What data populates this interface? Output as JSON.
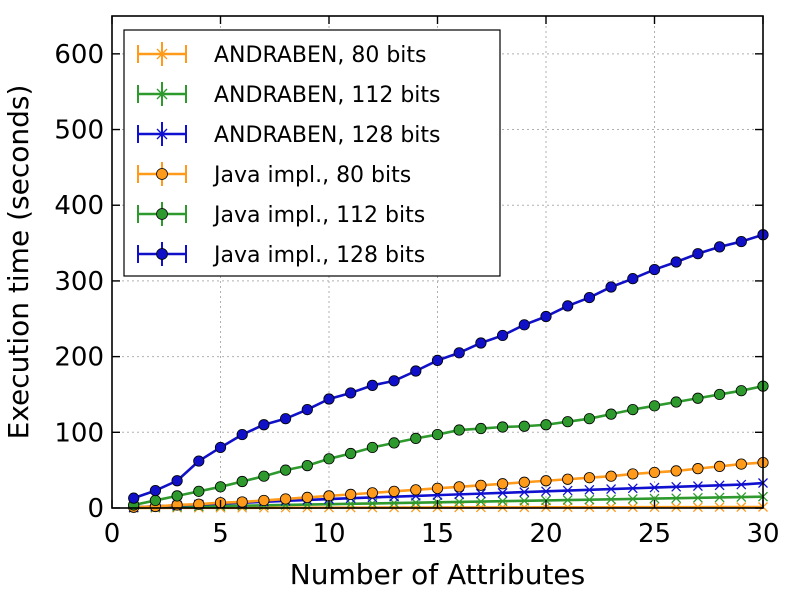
{
  "chart_data": {
    "type": "line",
    "title": "",
    "xlabel": "Number of Attributes",
    "ylabel": "Execution time (seconds)",
    "xlim": [
      0,
      30
    ],
    "ylim": [
      0,
      650
    ],
    "xticks": [
      0,
      5,
      10,
      15,
      20,
      25,
      30
    ],
    "yticks": [
      0,
      100,
      200,
      300,
      400,
      500,
      600
    ],
    "grid": true,
    "legend_position": "top-left",
    "x": [
      1,
      2,
      3,
      4,
      5,
      6,
      7,
      8,
      9,
      10,
      11,
      12,
      13,
      14,
      15,
      16,
      17,
      18,
      19,
      20,
      21,
      22,
      23,
      24,
      25,
      26,
      27,
      28,
      29,
      30
    ],
    "series": [
      {
        "name": "ANDRABEN, 80 bits",
        "color": "#ff9a1a",
        "marker": "x",
        "values": [
          0.1,
          0.1,
          0.2,
          0.2,
          0.3,
          0.3,
          0.3,
          0.4,
          0.4,
          0.5,
          0.5,
          0.5,
          0.6,
          0.6,
          0.7,
          0.7,
          0.7,
          0.8,
          0.8,
          0.9,
          0.9,
          0.9,
          1.0,
          1.0,
          1.1,
          1.1,
          1.1,
          1.2,
          1.2,
          1.3
        ]
      },
      {
        "name": "ANDRABEN, 112 bits",
        "color": "#2e9a2e",
        "marker": "x",
        "values": [
          0.5,
          1,
          1.5,
          2,
          2.5,
          3,
          3.5,
          4,
          4.5,
          5,
          5.5,
          6,
          6.5,
          7,
          7.5,
          8,
          8.5,
          9,
          9.5,
          10,
          10.5,
          11,
          11.5,
          12,
          12.5,
          13,
          13.5,
          14,
          14.5,
          15
        ]
      },
      {
        "name": "ANDRABEN, 128 bits",
        "color": "#1010d0",
        "marker": "x",
        "values": [
          1,
          2.2,
          3.4,
          4.6,
          5.8,
          7,
          8.2,
          9.4,
          10.6,
          11.8,
          13,
          14,
          15,
          16,
          17,
          18,
          19,
          20,
          21,
          22,
          23,
          24,
          25,
          26,
          27,
          28,
          29,
          30,
          31,
          33
        ]
      },
      {
        "name": "Java impl., 80 bits",
        "color": "#ff9a1a",
        "marker": "o",
        "values": [
          1,
          2,
          4,
          5,
          7,
          8,
          10,
          12,
          14,
          16,
          18,
          20,
          22,
          24,
          26,
          28,
          30,
          32,
          34,
          36,
          38,
          40,
          42,
          45,
          47,
          49,
          52,
          55,
          58,
          60
        ]
      },
      {
        "name": "Java impl., 112 bits",
        "color": "#2e9a2e",
        "marker": "o",
        "values": [
          4,
          10,
          16,
          22,
          28,
          35,
          42,
          50,
          56,
          65,
          72,
          80,
          86,
          92,
          97,
          103,
          105,
          107,
          108,
          110,
          114,
          118,
          124,
          130,
          135,
          140,
          145,
          150,
          155,
          161
        ]
      },
      {
        "name": "Java impl., 128 bits",
        "color": "#1010c8",
        "marker": "o",
        "values": [
          13,
          23,
          36,
          62,
          80,
          97,
          110,
          118,
          130,
          144,
          152,
          162,
          168,
          181,
          195,
          205,
          218,
          228,
          242,
          253,
          267,
          278,
          292,
          303,
          315,
          325,
          336,
          345,
          352,
          361
        ]
      }
    ]
  }
}
